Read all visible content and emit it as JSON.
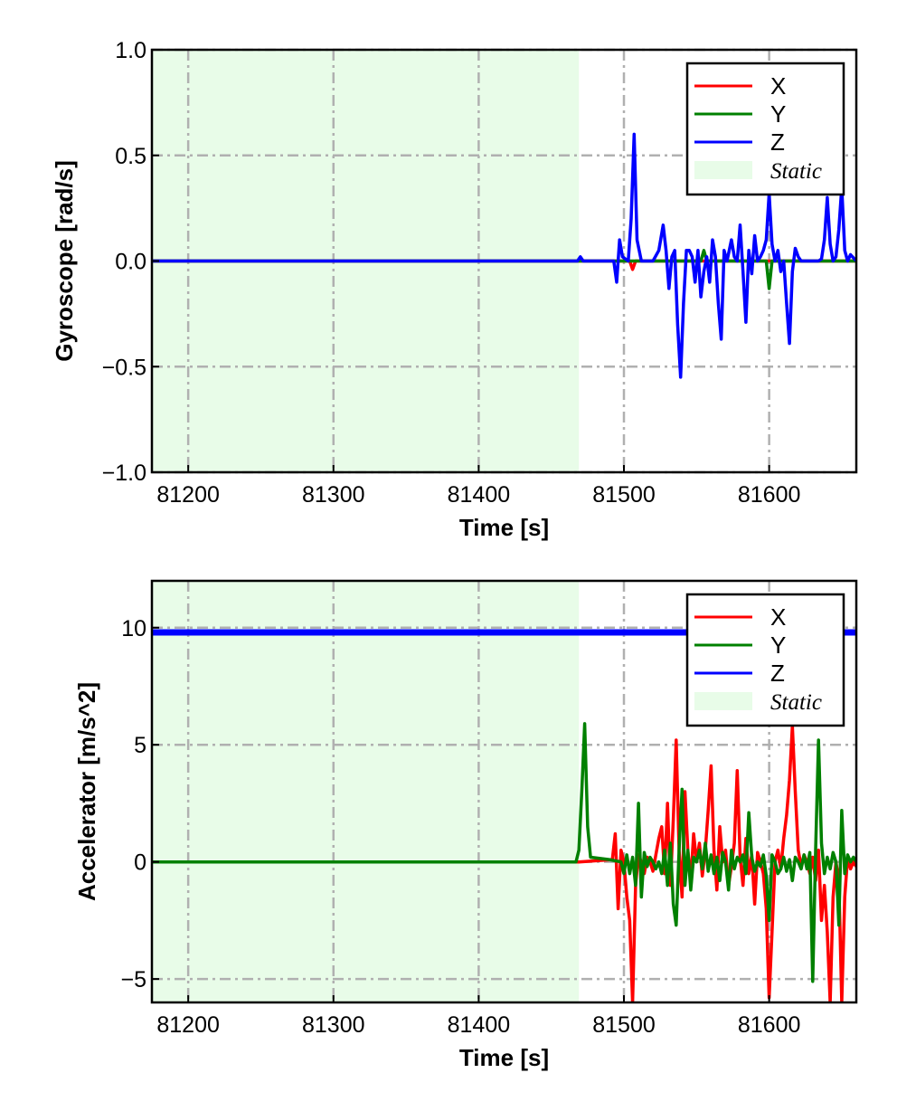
{
  "chart_data": [
    {
      "type": "line",
      "xlabel": "Time [s]",
      "ylabel": "Gyroscope [rad/s]",
      "xlim": [
        81175,
        81660
      ],
      "ylim": [
        -1.0,
        1.0
      ],
      "xticks": [
        81200,
        81300,
        81400,
        81500,
        81600
      ],
      "yticks": [
        -1.0,
        -0.5,
        0.0,
        0.5,
        1.0
      ],
      "ytick_labels": [
        "−1.0",
        "−0.5",
        "0.0",
        "0.5",
        "1.0"
      ],
      "grid": true,
      "static_region": [
        81175,
        81469
      ],
      "legend": {
        "position": "top-right",
        "entries": [
          "X",
          "Y",
          "Z",
          "Static"
        ]
      },
      "series": [
        {
          "name": "X",
          "color": "#ff0000",
          "x": [
            81175,
            81504,
            81506,
            81508,
            81510,
            81660
          ],
          "y": [
            0,
            0,
            -0.04,
            0,
            0,
            0
          ]
        },
        {
          "name": "Y",
          "color": "#008000",
          "x": [
            81175,
            81553,
            81555,
            81557,
            81598,
            81600,
            81602,
            81660
          ],
          "y": [
            0,
            0,
            0.05,
            0,
            0,
            -0.13,
            0,
            0
          ]
        },
        {
          "name": "Z",
          "color": "#0000ff",
          "x": [
            81175,
            81468,
            81470,
            81472,
            81493,
            81495,
            81497,
            81499,
            81503,
            81505,
            81507,
            81509,
            81512,
            81520,
            81524,
            81527,
            81529,
            81531,
            81533,
            81535,
            81537,
            81539,
            81541,
            81543,
            81545,
            81547,
            81549,
            81551,
            81553,
            81555,
            81557,
            81559,
            81561,
            81563,
            81565,
            81567,
            81569,
            81571,
            81574,
            81576,
            81578,
            81580,
            81582,
            81584,
            81586,
            81588,
            81590,
            81592,
            81594,
            81596,
            81598,
            81600,
            81602,
            81604,
            81606,
            81608,
            81610,
            81612,
            81614,
            81616,
            81618,
            81620,
            81622,
            81630,
            81634,
            81636,
            81638,
            81640,
            81642,
            81644,
            81646,
            81648,
            81650,
            81652,
            81654,
            81656,
            81660
          ],
          "y": [
            0,
            0,
            0.02,
            0,
            0,
            -0.1,
            0.1,
            0.02,
            0,
            0.2,
            0.6,
            0.1,
            0,
            0,
            0.05,
            0.17,
            0.05,
            -0.13,
            0.02,
            0.05,
            -0.3,
            -0.55,
            -0.2,
            0.05,
            0.05,
            0.02,
            -0.1,
            0.05,
            -0.17,
            -0.05,
            0.02,
            -0.1,
            0.1,
            0.02,
            -0.2,
            -0.37,
            0.05,
            0.0,
            0.1,
            0.02,
            0.0,
            0.17,
            -0.05,
            -0.29,
            0.05,
            -0.06,
            0.12,
            0.0,
            0.02,
            0.05,
            0.1,
            0.32,
            0.08,
            0.0,
            0.05,
            -0.05,
            0.0,
            -0.2,
            -0.39,
            -0.05,
            0.06,
            0.02,
            0.0,
            0.0,
            0.0,
            0.01,
            0.1,
            0.3,
            0.08,
            0.0,
            0.02,
            0.15,
            0.35,
            0.05,
            0.0,
            0.03,
            0.0
          ]
        }
      ]
    },
    {
      "type": "line",
      "xlabel": "Time [s]",
      "ylabel": "Accelerator [m/s^2]",
      "xlim": [
        81175,
        81660
      ],
      "ylim": [
        -6.0,
        12.0
      ],
      "xticks": [
        81200,
        81300,
        81400,
        81500,
        81600
      ],
      "yticks": [
        -5,
        0,
        5,
        10
      ],
      "ytick_labels": [
        "−5",
        "0",
        "5",
        "10"
      ],
      "grid": true,
      "static_region": [
        81175,
        81469
      ],
      "legend": {
        "position": "top-right",
        "entries": [
          "X",
          "Y",
          "Z",
          "Static"
        ]
      },
      "series": [
        {
          "name": "Z",
          "color": "#0000ff",
          "x": [
            81175,
            81660
          ],
          "y": [
            9.8,
            9.8
          ]
        },
        {
          "name": "X",
          "color": "#ff0000",
          "x": [
            81175,
            81469,
            81492,
            81494,
            81496,
            81498,
            81500,
            81502,
            81504,
            81506,
            81508,
            81510,
            81512,
            81514,
            81516,
            81518,
            81520,
            81522,
            81524,
            81526,
            81528,
            81530,
            81532,
            81534,
            81536,
            81538,
            81540,
            81542,
            81544,
            81546,
            81548,
            81550,
            81552,
            81554,
            81556,
            81558,
            81560,
            81562,
            81564,
            81566,
            81568,
            81570,
            81572,
            81574,
            81576,
            81578,
            81580,
            81582,
            81584,
            81586,
            81588,
            81590,
            81592,
            81594,
            81596,
            81598,
            81600,
            81602,
            81604,
            81606,
            81608,
            81610,
            81612,
            81614,
            81616,
            81618,
            81620,
            81622,
            81624,
            81626,
            81628,
            81630,
            81632,
            81634,
            81636,
            81638,
            81640,
            81642,
            81644,
            81646,
            81648,
            81650,
            81652,
            81654,
            81656,
            81658,
            81660
          ],
          "y": [
            0,
            0,
            0.1,
            1.2,
            -2.0,
            0.5,
            0.0,
            -1.5,
            -2.5,
            -6.0,
            -1.0,
            0.3,
            0.0,
            -0.5,
            0.2,
            0.0,
            -0.4,
            0.3,
            1.0,
            1.5,
            -0.5,
            2.5,
            -1.0,
            1.8,
            5.2,
            0.5,
            -1.5,
            3.0,
            0.5,
            -0.8,
            1.2,
            0.0,
            0.8,
            -0.6,
            0.5,
            2.2,
            4.1,
            0.5,
            -1.2,
            1.5,
            0.0,
            0.5,
            -1.0,
            -0.2,
            0.8,
            3.9,
            0.2,
            -1.0,
            1.0,
            -0.5,
            0.3,
            -1.8,
            0.4,
            0.0,
            -0.5,
            -2.0,
            -5.8,
            -3.0,
            0.0,
            0.5,
            -0.3,
            1.0,
            2.0,
            3.5,
            5.8,
            3.0,
            0.5,
            -0.2,
            0.3,
            0.0,
            -0.5,
            0.2,
            -0.8,
            0.5,
            -2.5,
            -1.0,
            -3.0,
            -6.0,
            -1.5,
            0.0,
            -0.8,
            -6.0,
            -1.5,
            0.2,
            -0.3,
            0.0,
            -0.2
          ]
        },
        {
          "name": "Y",
          "color": "#008000",
          "x": [
            81175,
            81467,
            81469,
            81471,
            81473,
            81475,
            81477,
            81490,
            81498,
            81500,
            81502,
            81504,
            81506,
            81508,
            81510,
            81512,
            81514,
            81516,
            81518,
            81520,
            81522,
            81524,
            81526,
            81528,
            81530,
            81532,
            81534,
            81536,
            81538,
            81540,
            81542,
            81544,
            81546,
            81548,
            81550,
            81552,
            81554,
            81556,
            81558,
            81560,
            81562,
            81564,
            81566,
            81568,
            81570,
            81572,
            81574,
            81576,
            81578,
            81580,
            81582,
            81584,
            81586,
            81588,
            81590,
            81592,
            81594,
            81596,
            81598,
            81600,
            81602,
            81604,
            81606,
            81608,
            81610,
            81612,
            81614,
            81616,
            81618,
            81620,
            81622,
            81624,
            81626,
            81628,
            81630,
            81632,
            81634,
            81636,
            81638,
            81640,
            81642,
            81644,
            81646,
            81648,
            81650,
            81652,
            81654,
            81656,
            81658,
            81660
          ],
          "y": [
            0,
            0,
            0.5,
            3.0,
            5.9,
            1.5,
            0.2,
            0.1,
            0.0,
            -0.5,
            0.3,
            -0.5,
            0.2,
            -1.0,
            2.5,
            -1.5,
            0.4,
            -0.2,
            0.2,
            0.0,
            -0.3,
            0.0,
            -0.5,
            0.5,
            -1.0,
            0.8,
            -1.8,
            -2.7,
            0.5,
            3.1,
            -1.0,
            0.5,
            -1.2,
            0.2,
            0.0,
            0.5,
            -0.3,
            0.8,
            -0.4,
            0.3,
            -0.5,
            0.2,
            -0.8,
            0.4,
            0.0,
            -1.2,
            0.5,
            -0.3,
            0.2,
            0.0,
            0.3,
            -0.5,
            2.1,
            0.2,
            -0.4,
            0.0,
            -0.2,
            0.3,
            -0.6,
            -2.5,
            0.3,
            0.0,
            -0.5,
            -0.3,
            0.2,
            -0.4,
            0.1,
            -0.8,
            0.2,
            0.0,
            -0.3,
            0.3,
            -0.3,
            0.4,
            -5.1,
            0.5,
            5.2,
            0.8,
            -0.5,
            0.2,
            -0.3,
            0.4,
            0.0,
            -2.7,
            2.2,
            -0.5,
            0.3,
            0.0,
            0.2,
            0.0
          ]
        }
      ]
    }
  ]
}
